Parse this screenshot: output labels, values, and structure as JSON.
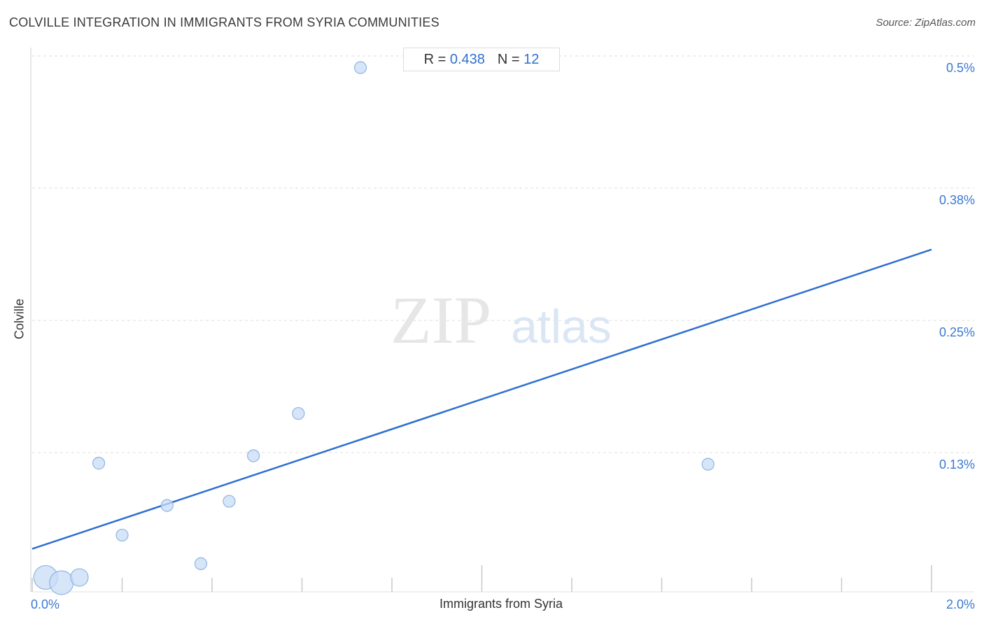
{
  "header": {
    "title": "COLVILLE INTEGRATION IN IMMIGRANTS FROM SYRIA COMMUNITIES",
    "source": "Source: ZipAtlas.com"
  },
  "stats": {
    "r_label": "R =",
    "r_value": "0.438",
    "n_label": "N =",
    "n_value": "12"
  },
  "watermark": {
    "zip": "ZIP",
    "atlas": "atlas"
  },
  "colors": {
    "accent": "#2f6fd0",
    "point_fill": "#c9dcf5",
    "point_stroke": "#8fb4e6",
    "grid": "#dddddd"
  },
  "chart_data": {
    "type": "scatter",
    "title": "COLVILLE INTEGRATION IN IMMIGRANTS FROM SYRIA COMMUNITIES",
    "xlabel": "Immigrants from Syria",
    "ylabel": "Colville",
    "xlim": [
      0,
      2.0
    ],
    "ylim": [
      0,
      0.5
    ],
    "x_tick_labels": [
      {
        "value": 0,
        "label": "0.0%"
      },
      {
        "value": 2.0,
        "label": "2.0%"
      }
    ],
    "y_tick_labels": [
      {
        "value": 0.5,
        "label": "0.5%"
      },
      {
        "value": 0.375,
        "label": "0.38%"
      },
      {
        "value": 0.25,
        "label": "0.25%"
      },
      {
        "value": 0.125,
        "label": "0.13%"
      }
    ],
    "grid": true,
    "points": [
      {
        "x": 0.03,
        "y": 0.007,
        "size": "large"
      },
      {
        "x": 0.065,
        "y": 0.002,
        "size": "large"
      },
      {
        "x": 0.105,
        "y": 0.007,
        "size": "medium"
      },
      {
        "x": 0.148,
        "y": 0.115,
        "size": "small"
      },
      {
        "x": 0.2,
        "y": 0.047,
        "size": "small"
      },
      {
        "x": 0.3,
        "y": 0.075,
        "size": "small"
      },
      {
        "x": 0.375,
        "y": 0.02,
        "size": "small"
      },
      {
        "x": 0.438,
        "y": 0.079,
        "size": "small"
      },
      {
        "x": 0.492,
        "y": 0.122,
        "size": "small"
      },
      {
        "x": 0.592,
        "y": 0.162,
        "size": "small"
      },
      {
        "x": 0.73,
        "y": 0.489,
        "size": "small"
      },
      {
        "x": 1.503,
        "y": 0.114,
        "size": "small"
      }
    ],
    "trendline": {
      "x": [
        0,
        2.0
      ],
      "y": [
        0.034,
        0.317
      ]
    }
  }
}
